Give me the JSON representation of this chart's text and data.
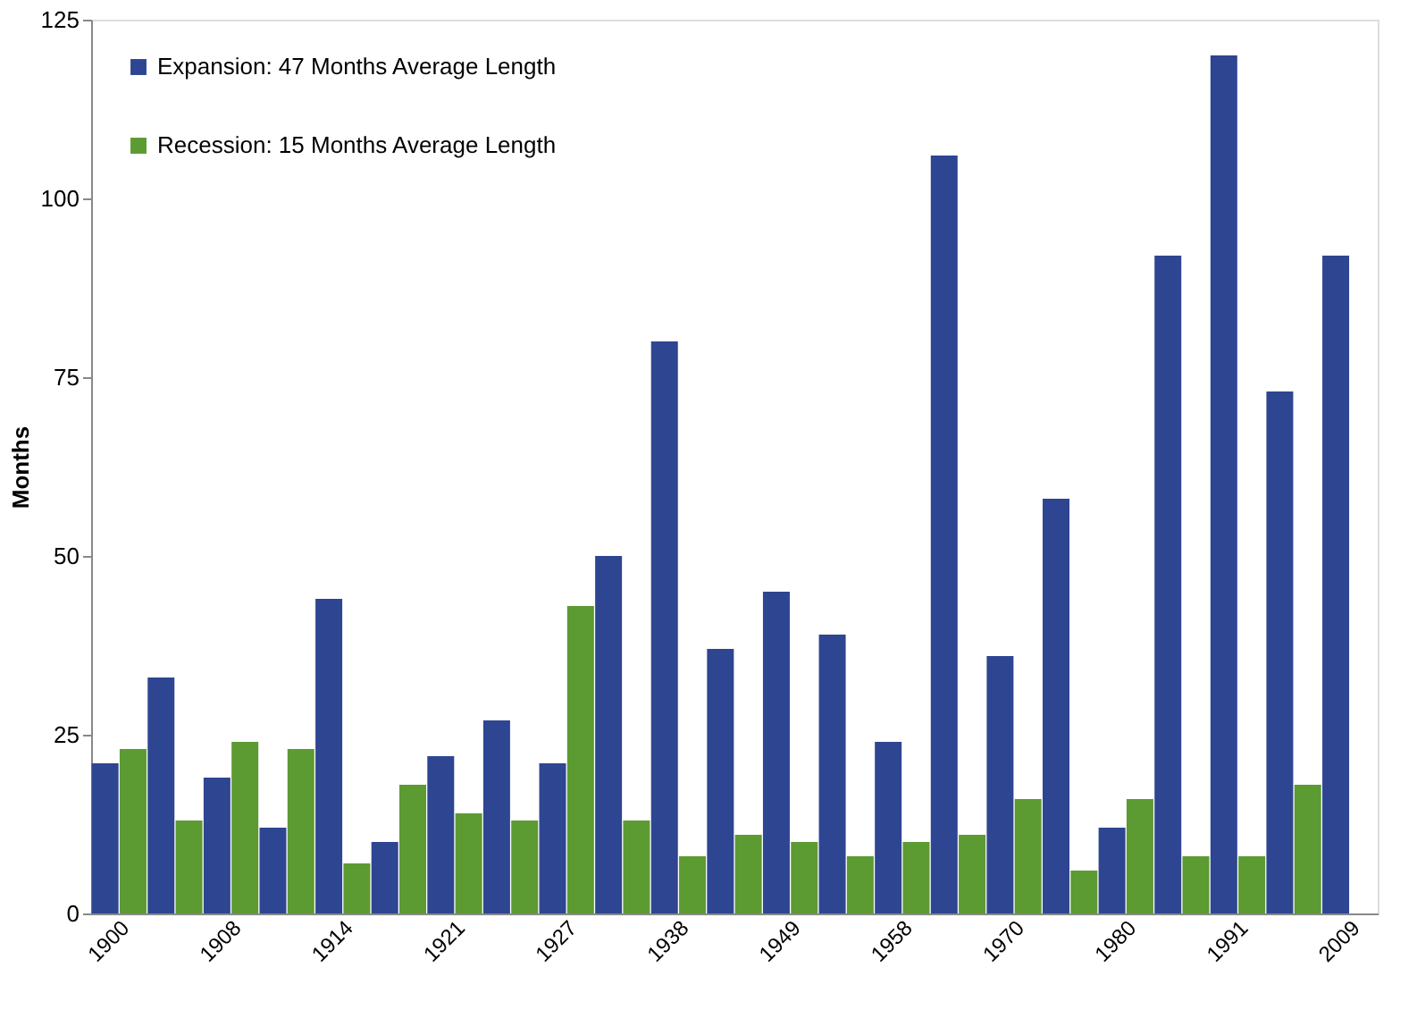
{
  "chart_data": {
    "type": "bar",
    "ylabel": "Months",
    "categories": [
      "1900",
      null,
      "1908",
      null,
      "1914",
      null,
      "1921",
      null,
      "1927",
      null,
      "1938",
      null,
      "1949",
      null,
      "1958",
      null,
      "1970",
      null,
      "1980",
      null,
      "1991",
      null,
      "2009"
    ],
    "series": [
      {
        "name": "Expansion: 47 Months Average Length",
        "color": "#2e4591",
        "values": [
          21,
          33,
          19,
          12,
          44,
          10,
          22,
          27,
          21,
          50,
          80,
          37,
          45,
          39,
          24,
          106,
          36,
          58,
          12,
          92,
          120,
          73,
          92
        ]
      },
      {
        "name": "Recession: 15 Months Average Length",
        "color": "#5c9a32",
        "values": [
          23,
          13,
          24,
          23,
          7,
          18,
          14,
          13,
          43,
          13,
          8,
          11,
          10,
          8,
          10,
          11,
          16,
          6,
          16,
          8,
          8,
          18,
          null
        ]
      }
    ],
    "ylim": [
      0,
      125
    ],
    "yticks": [
      0,
      25,
      50,
      75,
      100,
      125
    ],
    "grid": false,
    "legend": "top left"
  }
}
